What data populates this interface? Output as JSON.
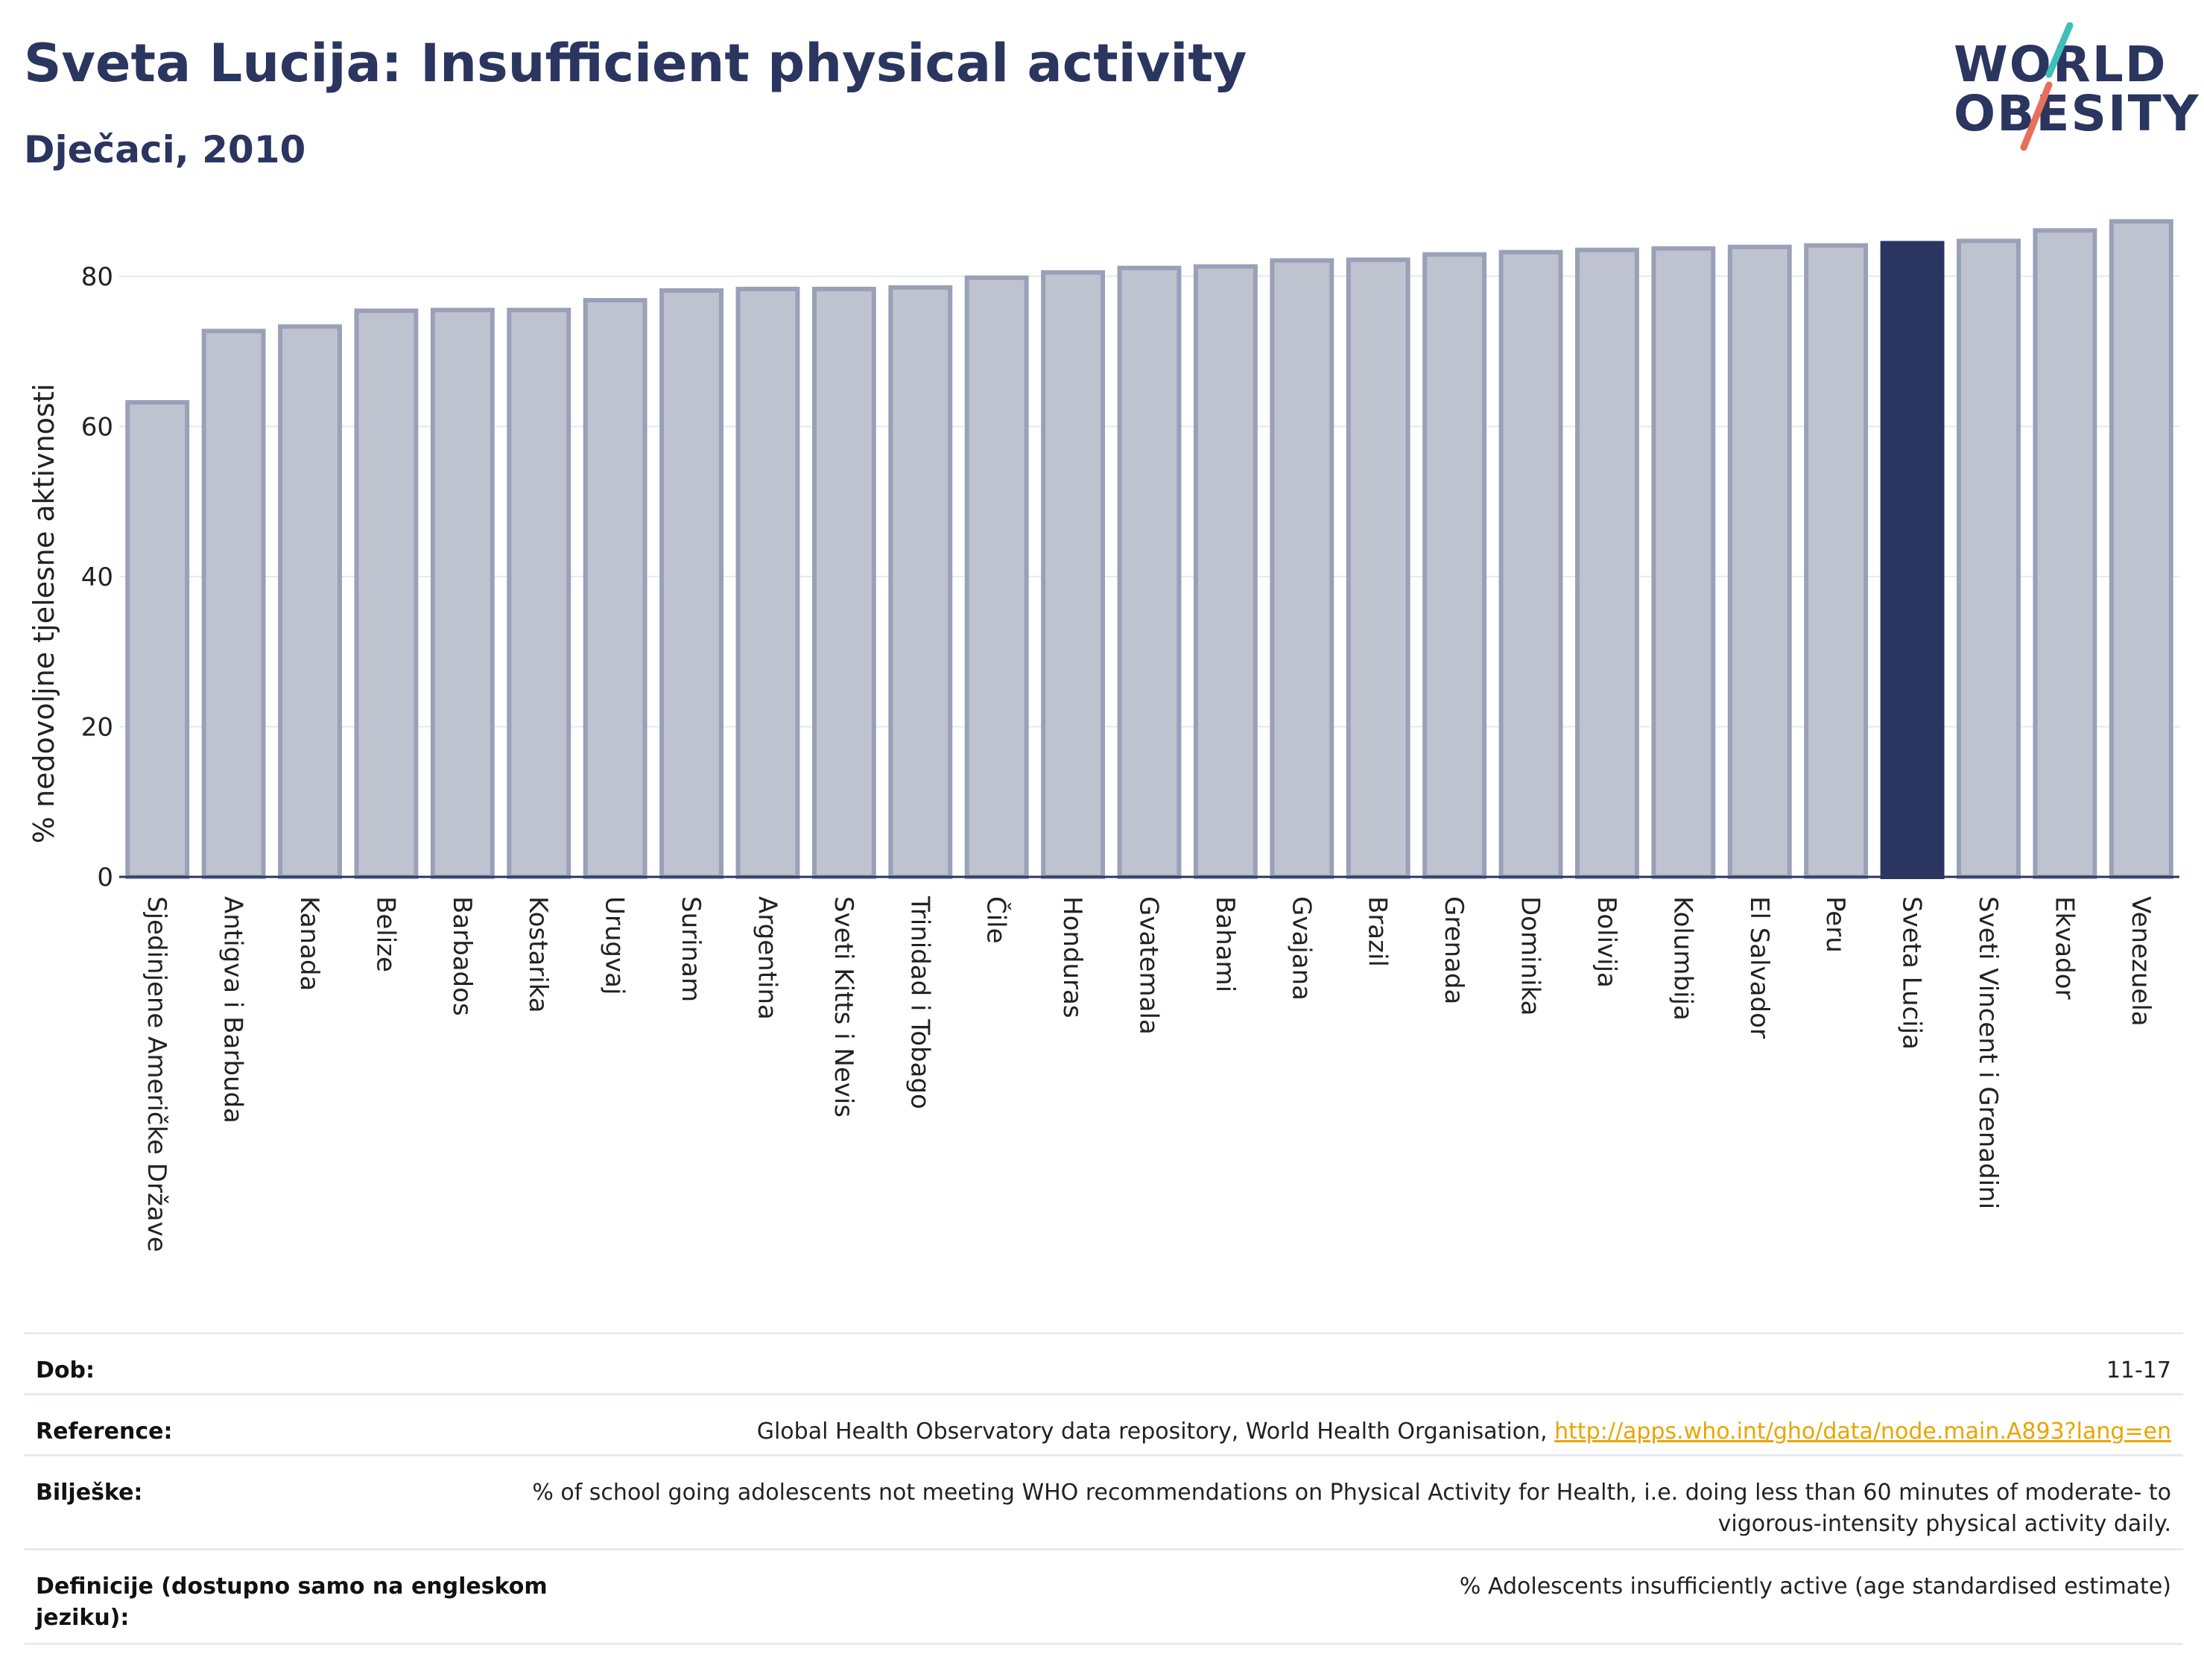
{
  "header": {
    "title": "Sveta Lucija: Insufficient physical activity",
    "subtitle": "Dječaci, 2010"
  },
  "logo": {
    "line1": "WORLD",
    "line2": "OBESITY",
    "accent_teal": "#3fbfb8",
    "accent_coral": "#e8705a"
  },
  "colors": {
    "bar_default": "#bfc3d0",
    "bar_border": "#9aa0b8",
    "bar_highlight": "#2a3560",
    "text_dark": "#2a3560"
  },
  "chart_data": {
    "type": "bar",
    "ylabel": "% nedovoljne tjelesne aktivnosti",
    "ylim": [
      0,
      90
    ],
    "yticks": [
      0,
      20,
      40,
      60,
      80
    ],
    "grid": true,
    "highlight": "Sveta Lucija",
    "categories": [
      "Sjedinjene Američke Države",
      "Antigva i Barbuda",
      "Kanada",
      "Belize",
      "Barbados",
      "Kostarika",
      "Urugvaj",
      "Surinam",
      "Argentina",
      "Sveti Kitts i Nevis",
      "Trinidad i Tobago",
      "Čile",
      "Honduras",
      "Gvatemala",
      "Bahami",
      "Gvajana",
      "Brazil",
      "Grenada",
      "Dominika",
      "Bolivija",
      "Kolumbija",
      "El Salvador",
      "Peru",
      "Sveta Lucija",
      "Sveti Vincent i Grenadini",
      "Ekvador",
      "Venezuela"
    ],
    "values": [
      63.2,
      72.7,
      73.3,
      75.4,
      75.5,
      75.5,
      76.8,
      78.1,
      78.3,
      78.3,
      78.5,
      79.8,
      80.5,
      81.1,
      81.3,
      82.1,
      82.2,
      82.9,
      83.2,
      83.5,
      83.7,
      83.9,
      84.1,
      84.4,
      84.7,
      86.1,
      87.3
    ]
  },
  "info": {
    "age_label": "Dob:",
    "age_value": "11-17",
    "reference_label": "Reference:",
    "reference_text": "Global Health Observatory data repository, World Health Organisation, ",
    "reference_link": "http://apps.who.int/gho/data/node.main.A893?lang=en",
    "notes_label": "Bilješke:",
    "notes_value": "% of school going adolescents not meeting WHO recommendations on Physical Activity for Health, i.e. doing less than 60 minutes of moderate- to vigorous-intensity physical activity daily.",
    "definitions_label": "Definicije (dostupno samo na engleskom jeziku):",
    "definitions_value": "% Adolescents insufficiently active (age standardised estimate)"
  }
}
